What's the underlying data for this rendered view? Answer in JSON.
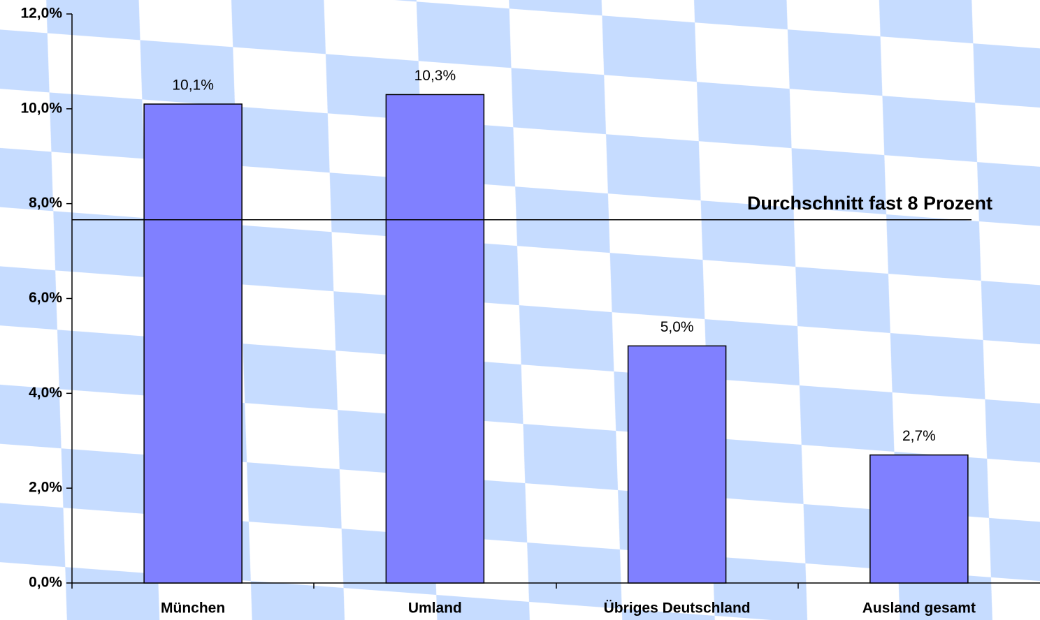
{
  "chart_data": {
    "type": "bar",
    "categories": [
      "München",
      "Umland",
      "Übriges Deutschland",
      "Ausland gesamt"
    ],
    "values": [
      10.1,
      10.3,
      5.0,
      2.7
    ],
    "value_labels": [
      "10,1%",
      "10,3%",
      "5,0%",
      "2,7%"
    ],
    "color": "#8080ff",
    "ylim": [
      0,
      12
    ],
    "yticks": [
      {
        "value": 0,
        "label": "0,0%"
      },
      {
        "value": 2,
        "label": "2,0%"
      },
      {
        "value": 4,
        "label": "4,0%"
      },
      {
        "value": 6,
        "label": "6,0%"
      },
      {
        "value": 8,
        "label": "8,0%"
      },
      {
        "value": 10,
        "label": "10,0%"
      },
      {
        "value": 12,
        "label": "12,0%"
      }
    ],
    "reference_line": {
      "value": 7.66,
      "label": "Durchschnitt fast 8 Prozent"
    }
  }
}
